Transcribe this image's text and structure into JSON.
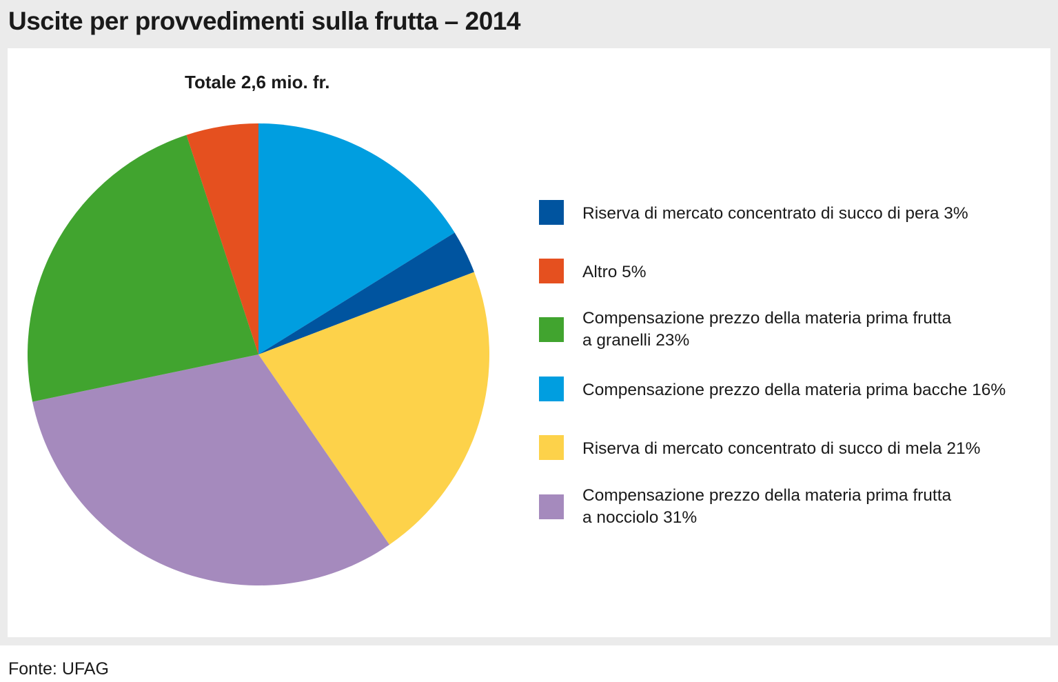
{
  "title": "Uscite per provvedimenti sulla frutta – 2014",
  "source": "Fonte: UFAG",
  "chart_data": {
    "type": "pie",
    "title": "Totale 2,6 mio. fr.",
    "unit": "%",
    "slices": [
      {
        "label": "Compensazione prezzo della materia prima bacche 16%",
        "value": 16,
        "color": "#009ee0"
      },
      {
        "label": "Riserva di mercato concentrato di succo di pera 3%",
        "value": 3,
        "color": "#00549f"
      },
      {
        "label": "Riserva di mercato concentrato di succo di mela  21%",
        "value": 21,
        "color": "#fdd24a"
      },
      {
        "label": "Compensazione prezzo della materia prima frutta\na nocciolo 31%",
        "value": 31,
        "color": "#a58abd"
      },
      {
        "label": "Compensazione prezzo della materia prima frutta\na granelli 23%",
        "value": 23,
        "color": "#41a42f"
      },
      {
        "label": "Altro 5%",
        "value": 5,
        "color": "#e5501f"
      }
    ],
    "legend": [
      {
        "label": "Riserva di mercato concentrato di succo di pera 3%",
        "color": "#00549f"
      },
      {
        "label": "Altro 5%",
        "color": "#e5501f"
      },
      {
        "label": "Compensazione prezzo della materia prima frutta\na granelli 23%",
        "color": "#41a42f"
      },
      {
        "label": "Compensazione prezzo della materia prima bacche 16%",
        "color": "#009ee0"
      },
      {
        "label": "Riserva di mercato concentrato di succo di mela  21%",
        "color": "#fdd24a"
      },
      {
        "label": "Compensazione prezzo della materia prima frutta\na nocciolo 31%",
        "color": "#a58abd"
      }
    ],
    "legend_position": "right"
  }
}
